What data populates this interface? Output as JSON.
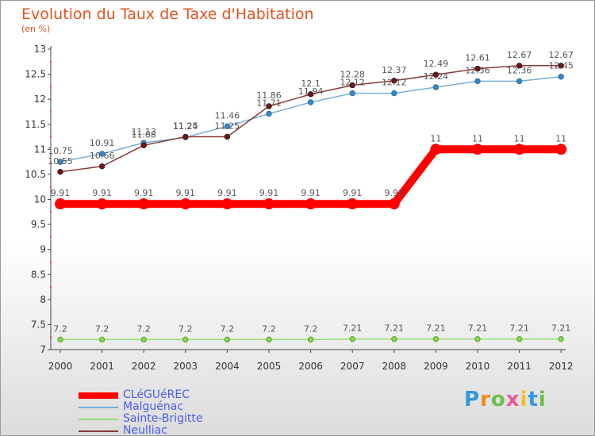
{
  "header": {
    "title": "Evolution du Taux de Taxe d'Habitation",
    "unit": "(en %)"
  },
  "chart_data": {
    "type": "line",
    "x": [
      "2000",
      "2001",
      "2002",
      "2003",
      "2004",
      "2005",
      "2006",
      "2007",
      "2008",
      "2009",
      "2010",
      "2011",
      "2012"
    ],
    "ylim": [
      7,
      13
    ],
    "yticks": [
      "7",
      "7.5",
      "8",
      "8.5",
      "9",
      "9.5",
      "10",
      "10.5",
      "11",
      "11.5",
      "12",
      "12.5",
      "13"
    ],
    "grid": false,
    "legend_position": "bottom-left",
    "series": [
      {
        "name": "CLéGUéREC",
        "color": "#ff0000",
        "values": [
          9.91,
          9.91,
          9.91,
          9.91,
          9.91,
          9.91,
          9.91,
          9.91,
          9.91,
          11,
          11,
          11,
          11
        ],
        "labels": [
          "9.91",
          "9.91",
          "9.91",
          "9.91",
          "9.91",
          "9.91",
          "9.91",
          "9.91",
          "9.91",
          "11",
          "11",
          "11",
          "11"
        ]
      },
      {
        "name": "Malguénac",
        "color": "#7aaed6",
        "values": [
          10.75,
          10.91,
          11.13,
          11.24,
          11.46,
          11.71,
          11.94,
          12.12,
          12.12,
          12.24,
          12.36,
          12.36,
          12.45
        ],
        "labels": [
          "10.75",
          "10.91",
          "11.13",
          "11.24",
          "11.46",
          "11.71",
          "11.94",
          "12.12",
          "12.12",
          "12.24",
          "12.36",
          "12.36",
          "12.45"
        ]
      },
      {
        "name": "Sainte-Brigitte",
        "color": "#99dd77",
        "values": [
          7.2,
          7.2,
          7.2,
          7.2,
          7.2,
          7.2,
          7.2,
          7.21,
          7.21,
          7.21,
          7.21,
          7.21,
          7.21
        ],
        "labels": [
          "7.2",
          "7.2",
          "7.2",
          "7.2",
          "7.2",
          "7.2",
          "7.2",
          "7.21",
          "7.21",
          "7.21",
          "7.21",
          "7.21",
          "7.21"
        ]
      },
      {
        "name": "Neulliac",
        "color": "#8b3a3a",
        "values": [
          10.55,
          10.66,
          11.08,
          11.25,
          11.25,
          11.86,
          12.1,
          12.28,
          12.37,
          12.49,
          12.61,
          12.67,
          12.67
        ],
        "labels": [
          "10.55",
          "10.66",
          "11.08",
          "11.25",
          "11.25",
          "11.86",
          "12.1",
          "12.28",
          "12.37",
          "12.49",
          "12.61",
          "12.67",
          "12.67"
        ]
      }
    ]
  },
  "legend": {
    "items": [
      "CLéGUéREC",
      "Malguénac",
      "Sainte-Brigitte",
      "Neulliac"
    ]
  },
  "logo": {
    "letters": [
      "P",
      "r",
      "o",
      "x",
      "i",
      "t",
      "i"
    ],
    "colors": [
      "#3399dd",
      "#f08a1c",
      "#6cc04a",
      "#e85a9b",
      "#f5c018",
      "#3399dd",
      "#6cc04a"
    ]
  }
}
